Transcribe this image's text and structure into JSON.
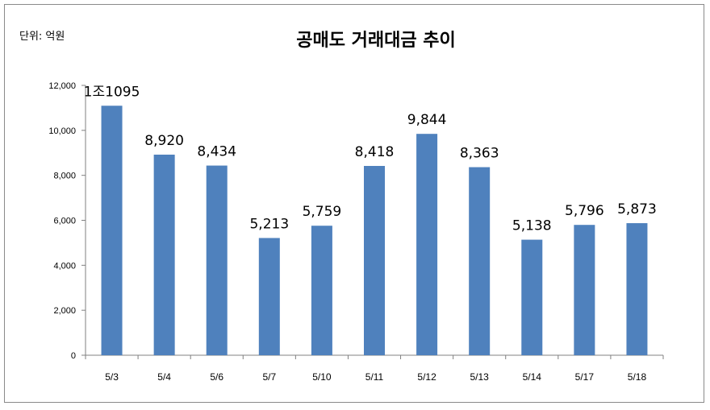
{
  "chart_data": {
    "type": "bar",
    "title": "공매도 거래대금 추이",
    "unit_label": "단위: 억원",
    "categories": [
      "5/3",
      "5/4",
      "5/6",
      "5/7",
      "5/10",
      "5/11",
      "5/12",
      "5/13",
      "5/14",
      "5/17",
      "5/18"
    ],
    "values": [
      11095,
      8920,
      8434,
      5213,
      5759,
      8418,
      9844,
      8363,
      5138,
      5796,
      5873
    ],
    "data_labels": [
      "1조1095",
      "8,920",
      "8,434",
      "5,213",
      "5,759",
      "8,418",
      "9,844",
      "8,363",
      "5,138",
      "5,796",
      "5,873"
    ],
    "ylim": [
      0,
      12000
    ],
    "y_ticks": [
      0,
      2000,
      4000,
      6000,
      8000,
      10000,
      12000
    ],
    "y_tick_labels": [
      "0",
      "2,000",
      "4,000",
      "6,000",
      "8,000",
      "10,000",
      "12,000"
    ],
    "xlabel": "",
    "ylabel": "",
    "grid": false,
    "legend": "none",
    "bar_color": "#4f81bd"
  }
}
